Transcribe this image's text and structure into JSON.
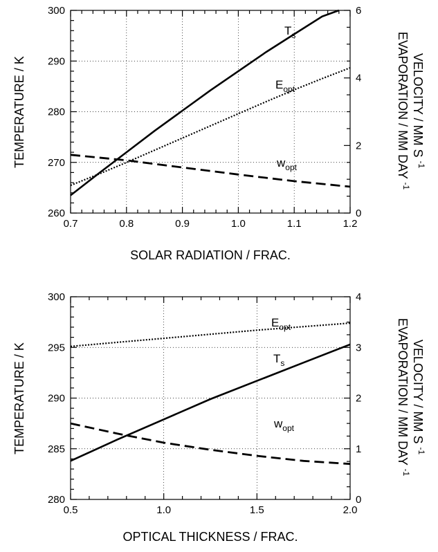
{
  "chart_data": [
    {
      "type": "line",
      "xlabel": "SOLAR RADIATION / FRAC.",
      "ylabel": "TEMPERATURE / K",
      "y2label_line1": "EVAPORATION / MM DAY-1",
      "y2label_line2": "VELOCITY / MM S-1",
      "xlim": [
        0.7,
        1.2
      ],
      "ylim": [
        260,
        300
      ],
      "y2lim": [
        0,
        6
      ],
      "grid": true,
      "xticks": [
        "0.7",
        "0.8",
        "0.9",
        "1.0",
        "1.1",
        "1.2"
      ],
      "yticks": [
        "260",
        "270",
        "280",
        "290",
        "300"
      ],
      "y2ticks": [
        "0",
        "2",
        "4",
        "6"
      ],
      "series": [
        {
          "name": "Ts",
          "label_main": "T",
          "label_sub": "s",
          "axis": "left",
          "style": "solid",
          "x": [
            0.7,
            0.75,
            0.8,
            0.85,
            0.9,
            0.95,
            1.0,
            1.05,
            1.1,
            1.15,
            1.18
          ],
          "y": [
            263.5,
            267.8,
            272.0,
            276.2,
            280.2,
            284.2,
            288.0,
            291.8,
            295.3,
            298.8,
            300.0
          ]
        },
        {
          "name": "Eopt",
          "label_main": "E",
          "label_sub": "opt",
          "axis": "right",
          "style": "dotted",
          "x": [
            0.7,
            0.75,
            0.8,
            0.85,
            0.9,
            0.95,
            1.0,
            1.05,
            1.1,
            1.15,
            1.2
          ],
          "y": [
            0.82,
            1.15,
            1.5,
            1.86,
            2.22,
            2.58,
            2.94,
            3.3,
            3.65,
            3.98,
            4.3
          ]
        },
        {
          "name": "wopt",
          "label_main": "w",
          "label_sub": "opt",
          "axis": "left",
          "style": "dashed",
          "x": [
            0.7,
            0.8,
            0.9,
            1.0,
            1.1,
            1.2
          ],
          "y": [
            271.5,
            270.4,
            269.0,
            267.6,
            266.3,
            265.2
          ]
        }
      ]
    },
    {
      "type": "line",
      "xlabel": "OPTICAL THICKNESS / FRAC.",
      "ylabel": "TEMPERATURE / K",
      "y2label_line1": "EVAPORATION / MM DAY-1",
      "y2label_line2": "VELOCITY / MM S-1",
      "xlim": [
        0.5,
        2.0
      ],
      "ylim": [
        280,
        300
      ],
      "y2lim": [
        0,
        4
      ],
      "grid": true,
      "xticks": [
        "0.5",
        "1.0",
        "1.5",
        "2.0"
      ],
      "yticks": [
        "280",
        "285",
        "290",
        "295",
        "300"
      ],
      "y2ticks": [
        "0",
        "1",
        "2",
        "3",
        "4"
      ],
      "series": [
        {
          "name": "Eopt",
          "label_main": "E",
          "label_sub": "opt",
          "axis": "right",
          "style": "dotted",
          "x": [
            0.5,
            0.75,
            1.0,
            1.25,
            1.5,
            1.75,
            2.0
          ],
          "y": [
            3.02,
            3.1,
            3.18,
            3.26,
            3.34,
            3.41,
            3.48
          ]
        },
        {
          "name": "Ts",
          "label_main": "T",
          "label_sub": "s",
          "axis": "left",
          "style": "solid",
          "x": [
            0.5,
            0.75,
            1.0,
            1.25,
            1.5,
            1.75,
            2.0
          ],
          "y": [
            283.8,
            285.9,
            287.9,
            289.9,
            291.7,
            293.5,
            295.3
          ]
        },
        {
          "name": "wopt",
          "label_main": "w",
          "label_sub": "opt",
          "axis": "left",
          "style": "dashed",
          "x": [
            0.5,
            0.75,
            1.0,
            1.25,
            1.5,
            1.75,
            2.0
          ],
          "y": [
            287.5,
            286.5,
            285.6,
            284.9,
            284.3,
            283.8,
            283.5
          ]
        }
      ]
    }
  ]
}
